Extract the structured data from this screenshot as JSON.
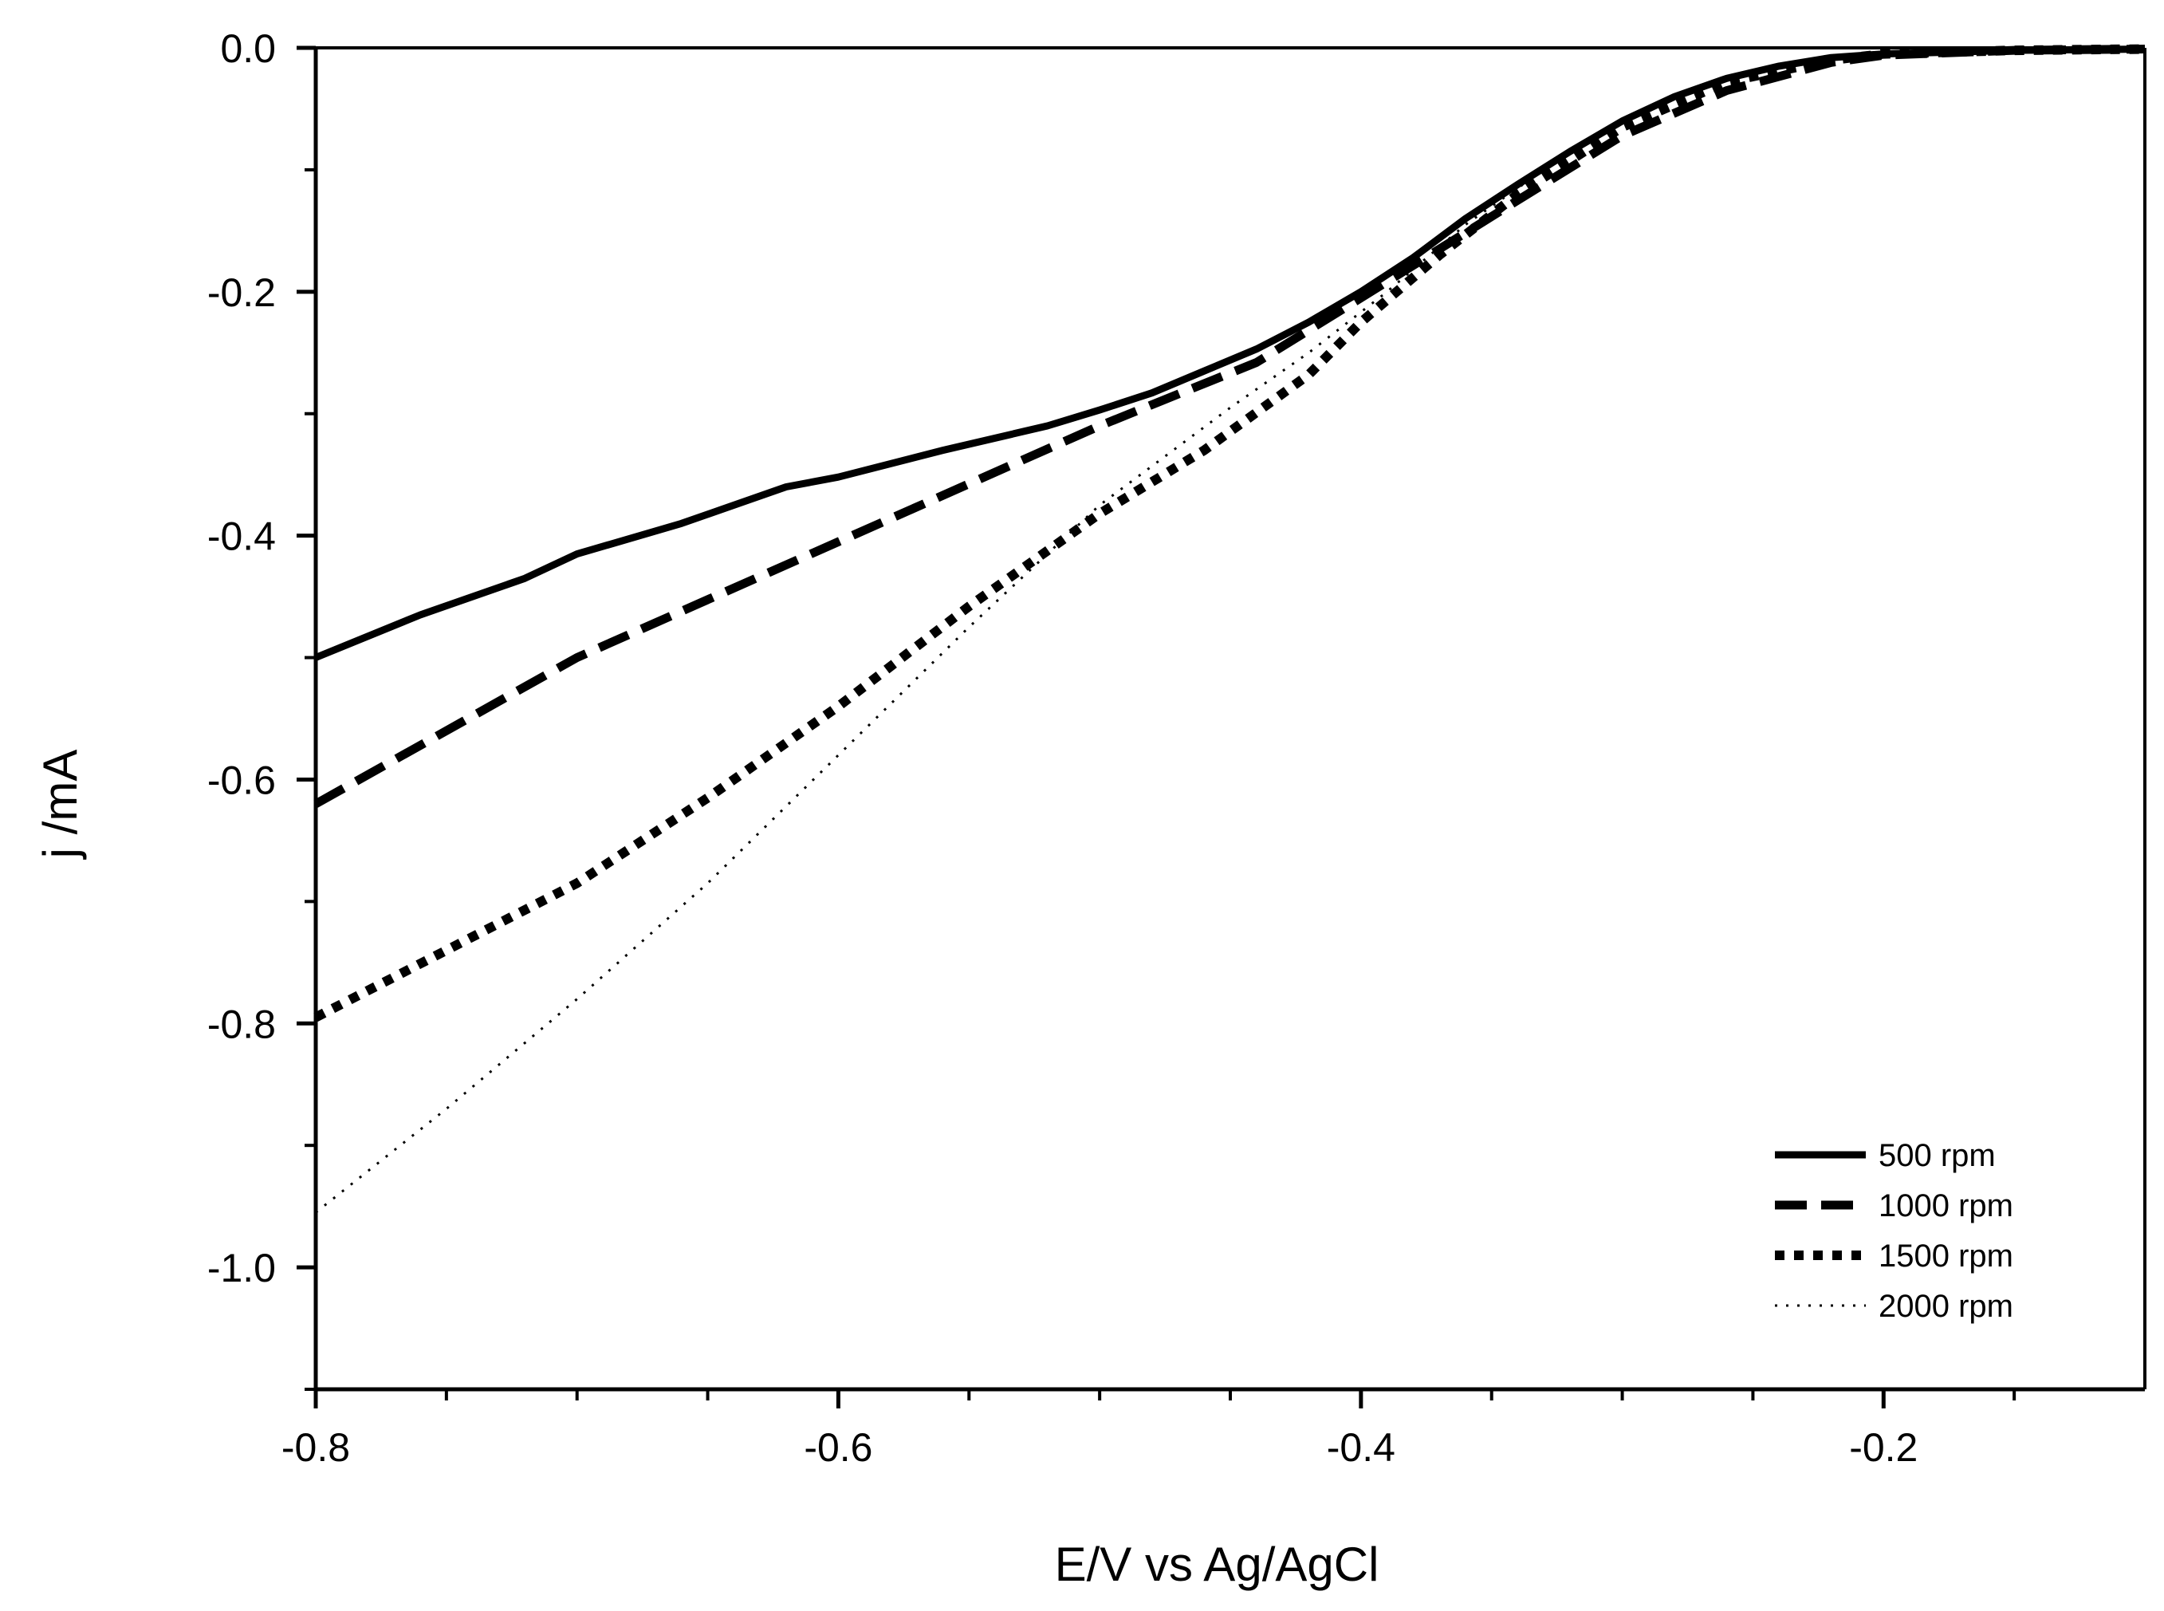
{
  "chart_data": {
    "type": "line",
    "title": "",
    "xlabel": "E/V vs Ag/AgCl",
    "ylabel": "j /mA",
    "xlim": [
      -0.8,
      -0.1
    ],
    "ylim": [
      -1.1,
      0.0
    ],
    "x_major_ticks": [
      -0.8,
      -0.6,
      -0.4,
      -0.2
    ],
    "x_minor_ticks": [
      -0.75,
      -0.7,
      -0.65,
      -0.55,
      -0.5,
      -0.45,
      -0.35,
      -0.3,
      -0.25,
      -0.15
    ],
    "x_tick_labels": [
      "-0.8",
      "-0.6",
      "-0.4",
      "-0.2"
    ],
    "y_major_ticks": [
      0.0,
      -0.2,
      -0.4,
      -0.6,
      -0.8,
      -1.0
    ],
    "y_minor_ticks": [
      -0.1,
      -0.3,
      -0.5,
      -0.7,
      -0.9,
      -1.1
    ],
    "y_tick_labels": [
      "0.0",
      "-0.2",
      "-0.4",
      "-0.6",
      "-0.8",
      "-1.0"
    ],
    "grid": false,
    "legend_position": "bottom-right",
    "series": [
      {
        "name": "500 rpm",
        "style": "solid",
        "x": [
          -0.8,
          -0.76,
          -0.72,
          -0.7,
          -0.66,
          -0.62,
          -0.6,
          -0.56,
          -0.52,
          -0.5,
          -0.48,
          -0.46,
          -0.44,
          -0.42,
          -0.4,
          -0.38,
          -0.36,
          -0.34,
          -0.32,
          -0.3,
          -0.28,
          -0.26,
          -0.24,
          -0.22,
          -0.2,
          -0.15,
          -0.1
        ],
        "y": [
          -0.5,
          -0.465,
          -0.435,
          -0.415,
          -0.39,
          -0.36,
          -0.352,
          -0.33,
          -0.31,
          -0.297,
          -0.283,
          -0.265,
          -0.247,
          -0.225,
          -0.2,
          -0.172,
          -0.14,
          -0.112,
          -0.085,
          -0.06,
          -0.04,
          -0.025,
          -0.015,
          -0.008,
          -0.005,
          -0.002,
          -0.001
        ]
      },
      {
        "name": "1000 rpm",
        "style": "dashed",
        "x": [
          -0.8,
          -0.7,
          -0.6,
          -0.5,
          -0.44,
          -0.4,
          -0.37,
          -0.34,
          -0.3,
          -0.26,
          -0.22,
          -0.2,
          -0.15,
          -0.1
        ],
        "y": [
          -0.62,
          -0.5,
          -0.405,
          -0.31,
          -0.258,
          -0.205,
          -0.165,
          -0.125,
          -0.072,
          -0.035,
          -0.012,
          -0.006,
          -0.002,
          -0.001
        ]
      },
      {
        "name": "1500 rpm",
        "style": "dotted",
        "x": [
          -0.8,
          -0.7,
          -0.65,
          -0.6,
          -0.55,
          -0.5,
          -0.46,
          -0.42,
          -0.4,
          -0.37,
          -0.34,
          -0.3,
          -0.26,
          -0.22,
          -0.2,
          -0.15,
          -0.1
        ],
        "y": [
          -0.795,
          -0.685,
          -0.615,
          -0.54,
          -0.458,
          -0.382,
          -0.33,
          -0.268,
          -0.225,
          -0.17,
          -0.12,
          -0.065,
          -0.028,
          -0.01,
          -0.005,
          -0.002,
          -0.001
        ]
      },
      {
        "name": "2000 rpm",
        "style": "fine-dotted",
        "x": [
          -0.8,
          -0.75,
          -0.7,
          -0.65,
          -0.6,
          -0.55,
          -0.5,
          -0.45,
          -0.42,
          -0.39,
          -0.36,
          -0.33,
          -0.3,
          -0.26,
          -0.22,
          -0.2,
          -0.15,
          -0.1
        ],
        "y": [
          -0.955,
          -0.87,
          -0.78,
          -0.685,
          -0.58,
          -0.475,
          -0.375,
          -0.295,
          -0.25,
          -0.2,
          -0.145,
          -0.1,
          -0.06,
          -0.025,
          -0.008,
          -0.004,
          -0.002,
          -0.001
        ]
      }
    ]
  }
}
